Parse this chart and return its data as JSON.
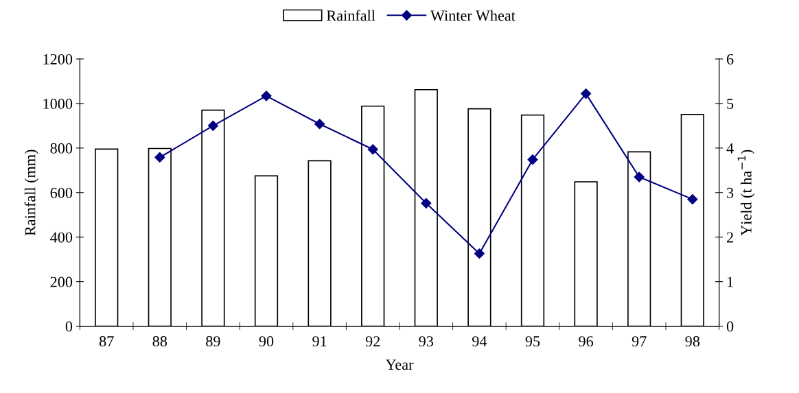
{
  "chart_data": {
    "type": "bar",
    "xlabel": "Year",
    "ylabel": "Rainfall (mm)",
    "y2label": "Yield (t ha$^{−1}$)",
    "categories": [
      "87",
      "88",
      "89",
      "90",
      "91",
      "92",
      "93",
      "94",
      "95",
      "96",
      "97",
      "98"
    ],
    "series": [
      {
        "name": "Rainfall",
        "color": "#ffffff",
        "values": [
          795,
          798,
          970,
          675,
          743,
          988,
          1062,
          976,
          948,
          648,
          783,
          951
        ]
      },
      {
        "name": "Winter Wheat",
        "type": "line",
        "axis": "y2",
        "color": "#000080",
        "marker": "diamond",
        "values": [
          null,
          3.79,
          4.5,
          5.17,
          4.54,
          3.97,
          2.76,
          1.63,
          3.74,
          5.22,
          3.35,
          2.85
        ]
      }
    ],
    "ylim": [
      0,
      1200
    ],
    "yticks": [
      0,
      200,
      400,
      600,
      800,
      1000,
      1200
    ],
    "y2lim": [
      0,
      6
    ],
    "y2ticks": [
      0,
      1,
      2,
      3,
      4,
      5,
      6
    ],
    "grid": false,
    "legend": "top"
  }
}
